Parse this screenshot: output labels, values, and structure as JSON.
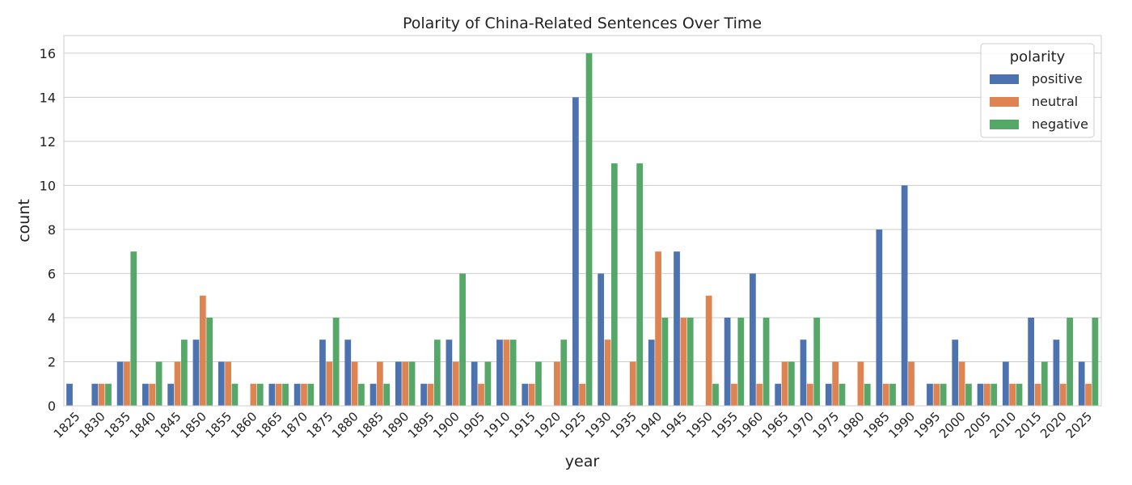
{
  "chart_data": {
    "type": "bar",
    "title": "Polarity of China-Related Sentences Over Time",
    "xlabel": "year",
    "ylabel": "count",
    "ylim": [
      0,
      16.8
    ],
    "yticks": [
      0,
      2,
      4,
      6,
      8,
      10,
      12,
      14,
      16
    ],
    "grid": true,
    "legend": {
      "title": "polarity",
      "placement": "top-right"
    },
    "categories": [
      "1825",
      "1830",
      "1835",
      "1840",
      "1845",
      "1850",
      "1855",
      "1860",
      "1865",
      "1870",
      "1875",
      "1880",
      "1885",
      "1890",
      "1895",
      "1900",
      "1905",
      "1910",
      "1915",
      "1920",
      "1925",
      "1930",
      "1935",
      "1940",
      "1945",
      "1950",
      "1955",
      "1960",
      "1965",
      "1970",
      "1975",
      "1980",
      "1985",
      "1990",
      "1995",
      "2000",
      "2005",
      "2010",
      "2015",
      "2020",
      "2025"
    ],
    "series": [
      {
        "name": "positive",
        "color": "#4c72b0",
        "values": [
          1,
          1,
          2,
          1,
          1,
          3,
          2,
          0,
          1,
          1,
          3,
          3,
          1,
          2,
          1,
          3,
          2,
          3,
          1,
          0,
          14,
          6,
          0,
          3,
          7,
          0,
          4,
          6,
          1,
          3,
          1,
          0,
          8,
          10,
          1,
          3,
          1,
          2,
          4,
          3,
          2
        ]
      },
      {
        "name": "neutral",
        "color": "#dd8452",
        "values": [
          0,
          1,
          2,
          1,
          2,
          5,
          2,
          1,
          1,
          1,
          2,
          2,
          2,
          2,
          1,
          2,
          1,
          3,
          1,
          2,
          1,
          3,
          2,
          7,
          4,
          5,
          1,
          1,
          2,
          1,
          2,
          2,
          1,
          2,
          1,
          2,
          1,
          1,
          1,
          1,
          1
        ]
      },
      {
        "name": "negative",
        "color": "#55a868",
        "values": [
          0,
          1,
          7,
          2,
          3,
          4,
          1,
          1,
          1,
          1,
          4,
          1,
          1,
          2,
          3,
          6,
          2,
          3,
          2,
          3,
          16,
          11,
          11,
          4,
          4,
          1,
          4,
          4,
          2,
          4,
          1,
          1,
          1,
          0,
          1,
          1,
          1,
          1,
          2,
          4,
          4
        ]
      }
    ]
  }
}
